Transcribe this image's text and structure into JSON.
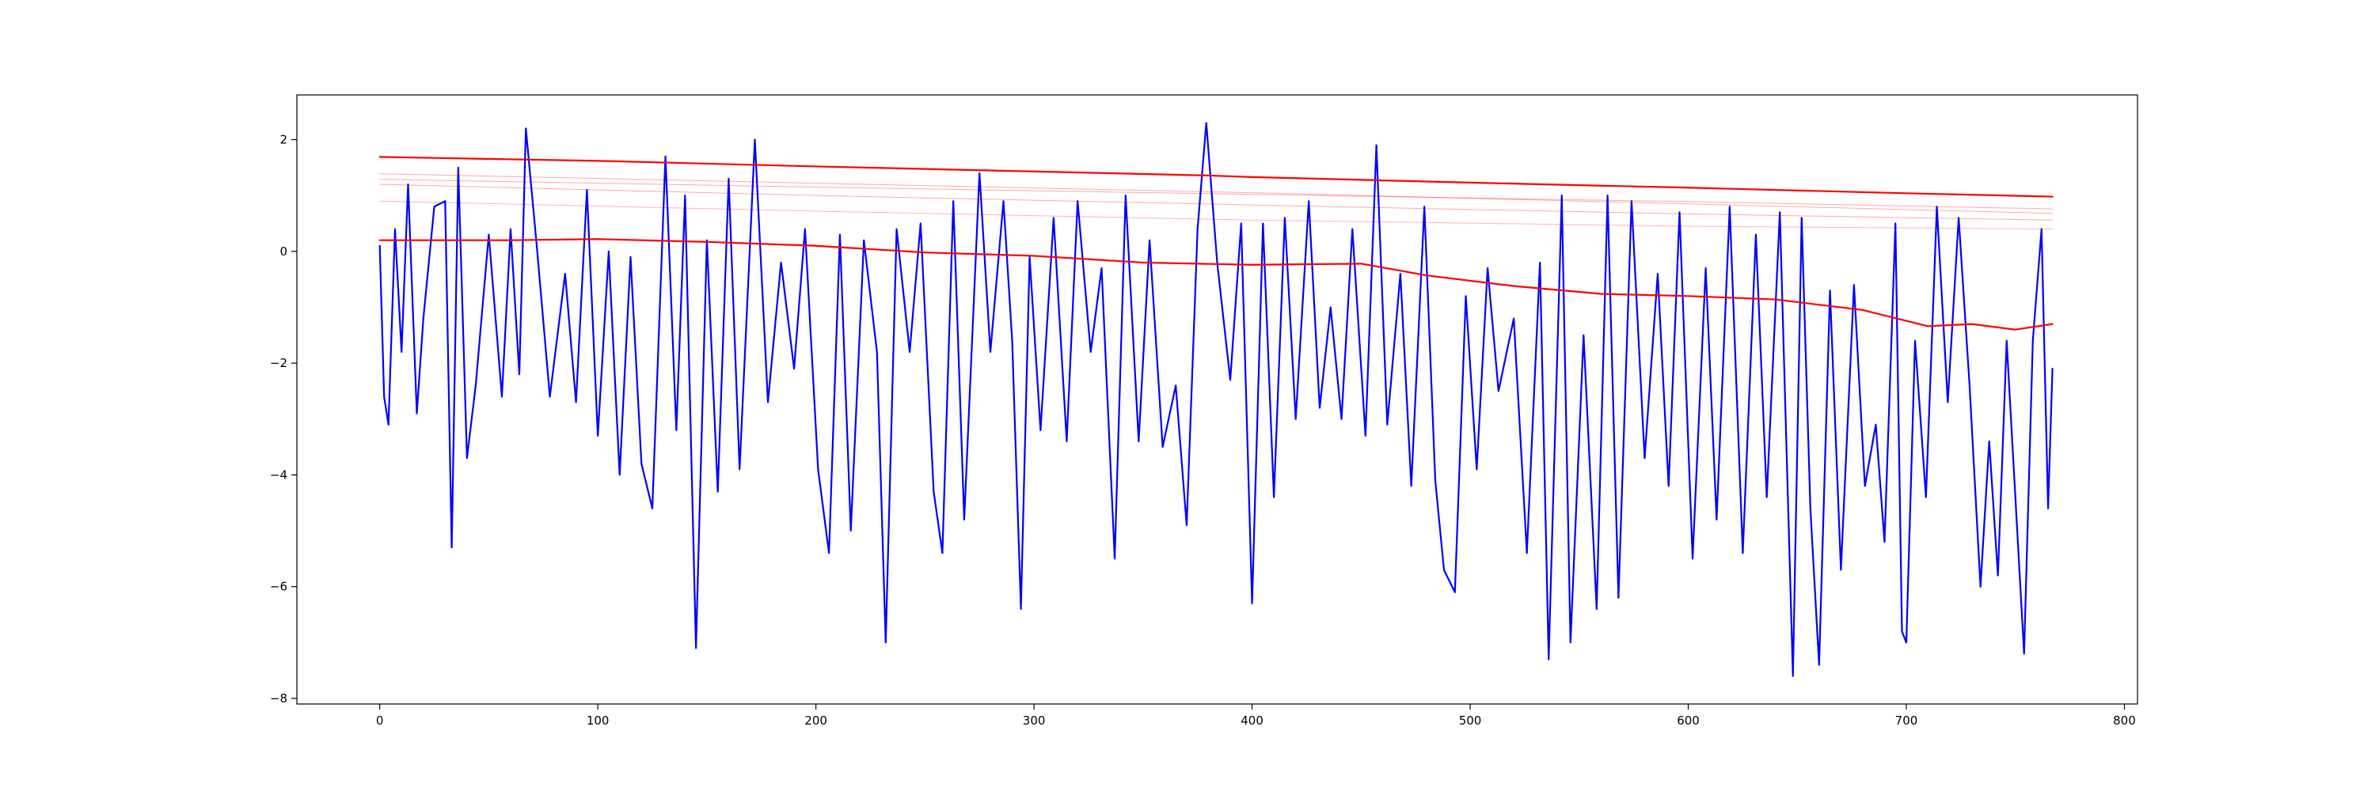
{
  "chart_data": {
    "type": "line",
    "title": "",
    "xlabel": "",
    "ylabel": "",
    "xlim": [
      -38,
      806
    ],
    "ylim": [
      -8.1,
      2.8
    ],
    "grid": false,
    "legend": "none",
    "x_ticks": [
      0,
      100,
      200,
      300,
      400,
      500,
      600,
      700,
      800
    ],
    "x_tick_labels": [
      "0",
      "100",
      "200",
      "300",
      "400",
      "500",
      "600",
      "700",
      "800"
    ],
    "y_ticks": [
      2,
      0,
      -2,
      -4,
      -6,
      -8
    ],
    "y_tick_labels": [
      "2",
      "0",
      "−2",
      "−4",
      "−6",
      "−8"
    ],
    "n_points": 768,
    "series": [
      {
        "role": "signal",
        "color": "#0000ff",
        "stroke": 2.2,
        "opacity": 1,
        "keypoints": [
          [
            0,
            0.1
          ],
          [
            2,
            -2.6
          ],
          [
            4,
            -3.1
          ],
          [
            7,
            0.4
          ],
          [
            10,
            -1.8
          ],
          [
            13,
            1.2
          ],
          [
            17,
            -2.9
          ],
          [
            20,
            -1.2
          ],
          [
            25,
            0.8
          ],
          [
            30,
            0.9
          ],
          [
            33,
            -5.3
          ],
          [
            36,
            1.5
          ],
          [
            40,
            -3.7
          ],
          [
            44,
            -2.4
          ],
          [
            50,
            0.3
          ],
          [
            56,
            -2.6
          ],
          [
            60,
            0.4
          ],
          [
            64,
            -2.2
          ],
          [
            67,
            2.2
          ],
          [
            72,
            0.1
          ],
          [
            78,
            -2.6
          ],
          [
            85,
            -0.4
          ],
          [
            90,
            -2.7
          ],
          [
            95,
            1.1
          ],
          [
            100,
            -3.3
          ],
          [
            105,
            0.0
          ],
          [
            110,
            -4.0
          ],
          [
            115,
            -0.1
          ],
          [
            120,
            -3.8
          ],
          [
            125,
            -4.6
          ],
          [
            131,
            1.7
          ],
          [
            136,
            -3.2
          ],
          [
            140,
            1.0
          ],
          [
            145,
            -7.1
          ],
          [
            150,
            0.2
          ],
          [
            155,
            -4.3
          ],
          [
            160,
            1.3
          ],
          [
            165,
            -3.9
          ],
          [
            172,
            2.0
          ],
          [
            178,
            -2.7
          ],
          [
            184,
            -0.2
          ],
          [
            190,
            -2.1
          ],
          [
            195,
            0.4
          ],
          [
            201,
            -3.9
          ],
          [
            206,
            -5.4
          ],
          [
            211,
            0.3
          ],
          [
            216,
            -5.0
          ],
          [
            222,
            0.2
          ],
          [
            228,
            -1.8
          ],
          [
            232,
            -7.0
          ],
          [
            237,
            0.4
          ],
          [
            243,
            -1.8
          ],
          [
            248,
            0.5
          ],
          [
            254,
            -4.3
          ],
          [
            258,
            -5.4
          ],
          [
            263,
            0.9
          ],
          [
            268,
            -4.8
          ],
          [
            275,
            1.4
          ],
          [
            280,
            -1.8
          ],
          [
            286,
            0.9
          ],
          [
            290,
            -1.6
          ],
          [
            294,
            -6.4
          ],
          [
            298,
            -0.1
          ],
          [
            303,
            -3.2
          ],
          [
            309,
            0.6
          ],
          [
            315,
            -3.4
          ],
          [
            320,
            0.9
          ],
          [
            326,
            -1.8
          ],
          [
            331,
            -0.3
          ],
          [
            337,
            -5.5
          ],
          [
            342,
            1.0
          ],
          [
            348,
            -3.4
          ],
          [
            353,
            0.2
          ],
          [
            359,
            -3.5
          ],
          [
            365,
            -2.4
          ],
          [
            370,
            -4.9
          ],
          [
            375,
            0.4
          ],
          [
            379,
            2.3
          ],
          [
            384,
            -0.2
          ],
          [
            390,
            -2.3
          ],
          [
            395,
            0.5
          ],
          [
            400,
            -6.3
          ],
          [
            405,
            0.5
          ],
          [
            410,
            -4.4
          ],
          [
            415,
            0.6
          ],
          [
            420,
            -3.0
          ],
          [
            426,
            0.9
          ],
          [
            431,
            -2.8
          ],
          [
            436,
            -1.0
          ],
          [
            441,
            -3.0
          ],
          [
            446,
            0.4
          ],
          [
            452,
            -3.3
          ],
          [
            457,
            1.9
          ],
          [
            462,
            -3.1
          ],
          [
            468,
            -0.4
          ],
          [
            473,
            -4.2
          ],
          [
            479,
            0.8
          ],
          [
            484,
            -4.1
          ],
          [
            488,
            -5.7
          ],
          [
            493,
            -6.1
          ],
          [
            498,
            -0.8
          ],
          [
            503,
            -3.9
          ],
          [
            508,
            -0.3
          ],
          [
            513,
            -2.5
          ],
          [
            520,
            -1.2
          ],
          [
            526,
            -5.4
          ],
          [
            532,
            -0.2
          ],
          [
            536,
            -7.3
          ],
          [
            542,
            1.0
          ],
          [
            546,
            -7.0
          ],
          [
            552,
            -1.5
          ],
          [
            558,
            -6.4
          ],
          [
            563,
            1.0
          ],
          [
            568,
            -6.2
          ],
          [
            574,
            0.9
          ],
          [
            580,
            -3.7
          ],
          [
            586,
            -0.4
          ],
          [
            591,
            -4.2
          ],
          [
            596,
            0.7
          ],
          [
            602,
            -5.5
          ],
          [
            608,
            -0.3
          ],
          [
            613,
            -4.8
          ],
          [
            619,
            0.8
          ],
          [
            625,
            -5.4
          ],
          [
            631,
            0.3
          ],
          [
            636,
            -4.4
          ],
          [
            642,
            0.7
          ],
          [
            648,
            -7.6
          ],
          [
            652,
            0.6
          ],
          [
            656,
            -4.6
          ],
          [
            660,
            -7.4
          ],
          [
            665,
            -0.7
          ],
          [
            670,
            -5.7
          ],
          [
            676,
            -0.6
          ],
          [
            681,
            -4.2
          ],
          [
            686,
            -3.1
          ],
          [
            690,
            -5.2
          ],
          [
            695,
            0.5
          ],
          [
            698,
            -6.8
          ],
          [
            700,
            -7.0
          ],
          [
            704,
            -1.6
          ],
          [
            709,
            -4.4
          ],
          [
            714,
            0.8
          ],
          [
            719,
            -2.7
          ],
          [
            724,
            0.6
          ],
          [
            729,
            -2.4
          ],
          [
            734,
            -6.0
          ],
          [
            738,
            -3.4
          ],
          [
            742,
            -5.8
          ],
          [
            746,
            -1.6
          ],
          [
            750,
            -4.4
          ],
          [
            754,
            -7.2
          ],
          [
            758,
            -1.6
          ],
          [
            762,
            0.4
          ],
          [
            765,
            -4.6
          ],
          [
            767,
            -2.1
          ]
        ]
      },
      {
        "role": "upper-trend",
        "color": "#ff0000",
        "stroke": 2.2,
        "opacity": 1,
        "keypoints": [
          [
            0,
            1.69
          ],
          [
            100,
            1.62
          ],
          [
            200,
            1.52
          ],
          [
            300,
            1.43
          ],
          [
            378,
            1.36
          ],
          [
            400,
            1.33
          ],
          [
            500,
            1.23
          ],
          [
            600,
            1.14
          ],
          [
            700,
            1.04
          ],
          [
            767,
            0.98
          ]
        ]
      },
      {
        "role": "lower-trend",
        "color": "#ff0000",
        "stroke": 2.2,
        "opacity": 1,
        "keypoints": [
          [
            0,
            0.2
          ],
          [
            60,
            0.2
          ],
          [
            100,
            0.22
          ],
          [
            150,
            0.17
          ],
          [
            200,
            0.1
          ],
          [
            250,
            -0.02
          ],
          [
            300,
            -0.08
          ],
          [
            350,
            -0.2
          ],
          [
            400,
            -0.24
          ],
          [
            450,
            -0.22
          ],
          [
            480,
            -0.43
          ],
          [
            520,
            -0.62
          ],
          [
            560,
            -0.76
          ],
          [
            600,
            -0.8
          ],
          [
            640,
            -0.86
          ],
          [
            680,
            -1.05
          ],
          [
            710,
            -1.34
          ],
          [
            730,
            -1.3
          ],
          [
            750,
            -1.4
          ],
          [
            767,
            -1.3
          ]
        ]
      },
      {
        "role": "faint-band-1",
        "color": "#ff0000",
        "stroke": 1,
        "opacity": 0.35,
        "keypoints": [
          [
            0,
            1.39
          ],
          [
            200,
            1.22
          ],
          [
            400,
            1.05
          ],
          [
            600,
            0.85
          ],
          [
            767,
            0.68
          ]
        ]
      },
      {
        "role": "faint-band-2",
        "color": "#ff0000",
        "stroke": 1,
        "opacity": 0.35,
        "keypoints": [
          [
            0,
            1.29
          ],
          [
            200,
            1.15
          ],
          [
            400,
            1.02
          ],
          [
            600,
            0.89
          ],
          [
            767,
            0.76
          ]
        ]
      },
      {
        "role": "faint-band-3",
        "color": "#ff0000",
        "stroke": 1,
        "opacity": 0.35,
        "keypoints": [
          [
            0,
            1.2
          ],
          [
            200,
            1.0
          ],
          [
            400,
            0.83
          ],
          [
            600,
            0.67
          ],
          [
            767,
            0.56
          ]
        ]
      },
      {
        "role": "faint-band-4",
        "color": "#ff0000",
        "stroke": 1,
        "opacity": 0.3,
        "keypoints": [
          [
            0,
            0.9
          ],
          [
            200,
            0.72
          ],
          [
            400,
            0.56
          ],
          [
            600,
            0.45
          ],
          [
            767,
            0.4
          ]
        ]
      }
    ]
  }
}
